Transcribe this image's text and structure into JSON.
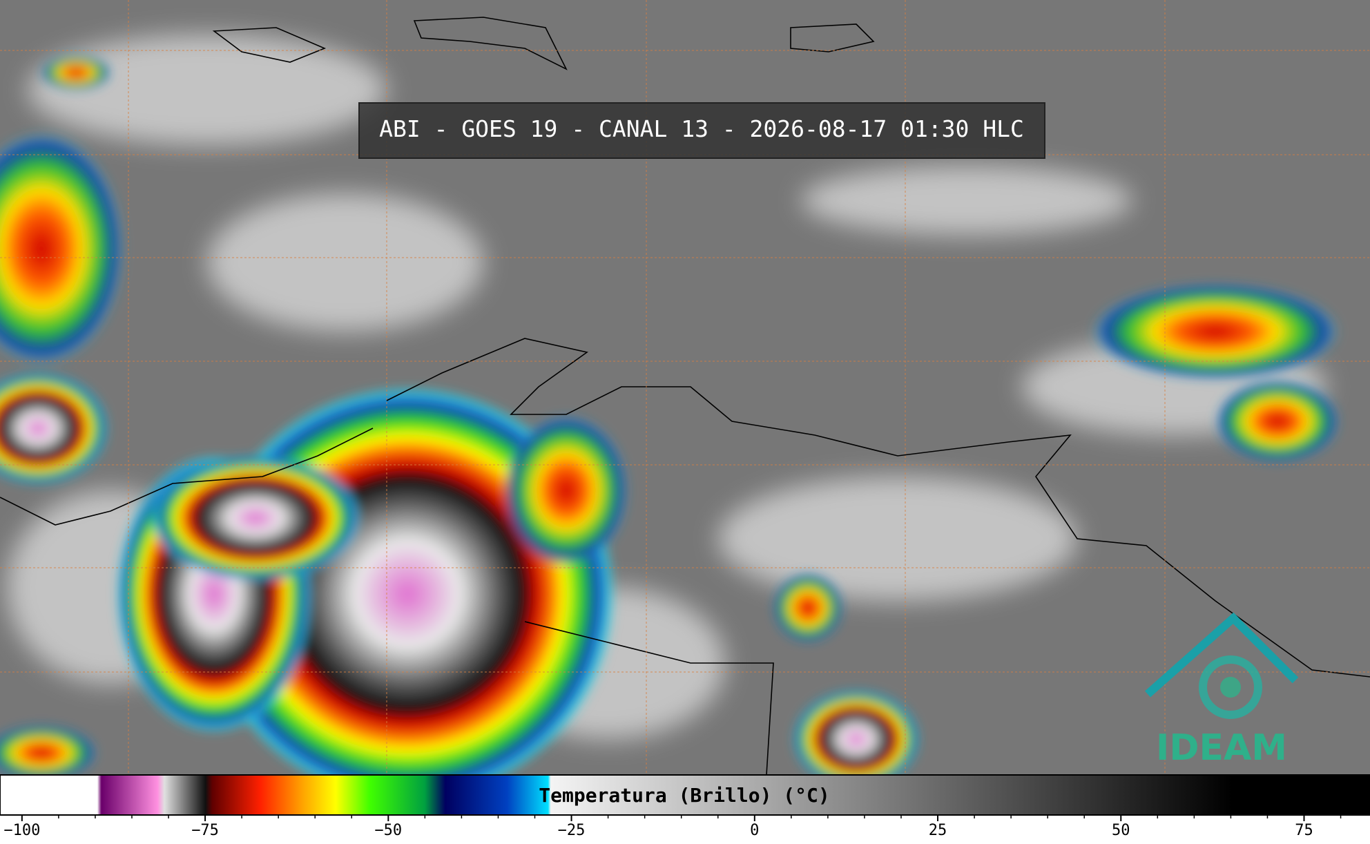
{
  "header": {
    "title": "ABI - GOES 19 - CANAL 13 - 2026-08-17 01:30 HLC"
  },
  "colorbar": {
    "label": "Temperatura (Brillo) (°C)",
    "xlim": [
      -103,
      84
    ],
    "xticks": [
      {
        "value": -100,
        "label": "−100"
      },
      {
        "value": -75,
        "label": "−75"
      },
      {
        "value": -50,
        "label": "−50"
      },
      {
        "value": -25,
        "label": "−25"
      },
      0,
      25,
      50,
      75
    ],
    "minor_ticks": [
      -95,
      -90,
      -85,
      -80,
      -70,
      -65,
      -60,
      -55,
      -45,
      -40,
      -35,
      -30,
      -20,
      -15,
      -10,
      -5,
      5,
      10,
      15,
      20,
      30,
      35,
      40,
      45,
      55,
      60,
      65,
      70,
      80
    ]
  },
  "logo": {
    "text": "IDEAM"
  }
}
